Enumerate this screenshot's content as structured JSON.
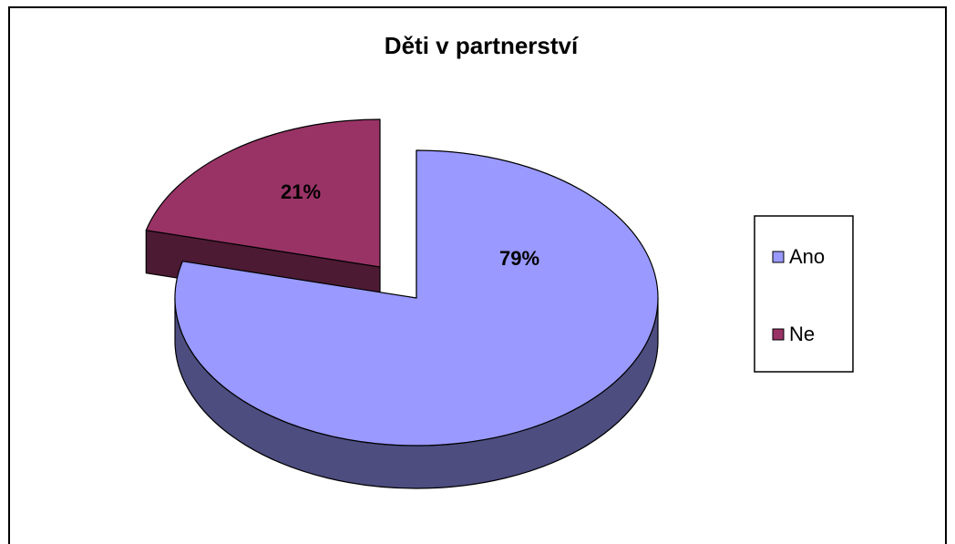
{
  "chart_data": {
    "type": "pie",
    "title": "Děti v partnerství",
    "categories": [
      "Ano",
      "Ne"
    ],
    "values": [
      79,
      21
    ],
    "value_labels": [
      "79%",
      "21%"
    ],
    "colors": [
      "#9999ff",
      "#993366"
    ],
    "explode": [
      false,
      true
    ],
    "legend": "right"
  }
}
